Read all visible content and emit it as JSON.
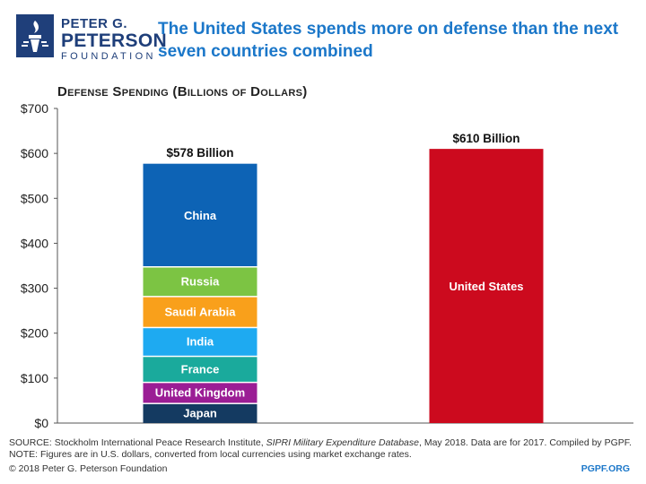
{
  "logo": {
    "line1": "PETER G.",
    "line2": "PETERSON",
    "line3": "FOUNDATION"
  },
  "headline": "The United States spends more on defense than the next seven countries combined",
  "chart_title": "Defense Spending (Billions of Dollars)",
  "colors": {
    "china": "#0d63b5",
    "russia": "#7cc443",
    "saudi_arabia": "#f9a01b",
    "india": "#1eaaf1",
    "france": "#1aaa9c",
    "united_kingdom": "#9b1d95",
    "japan": "#143a61",
    "united_states": "#cc0a1e",
    "axis_text": "#222222"
  },
  "chart_data": {
    "type": "bar",
    "stacked": true,
    "ylim": [
      0,
      700
    ],
    "yticks": [
      "$0",
      "$100",
      "$200",
      "$300",
      "$400",
      "$500",
      "$600",
      "$700"
    ],
    "ytick_values": [
      0,
      100,
      200,
      300,
      400,
      500,
      600,
      700
    ],
    "grid": false,
    "bars": [
      {
        "total_label": "$578 Billion",
        "total": 578,
        "segments": [
          {
            "name": "Japan",
            "value": 45,
            "color": "#143a61"
          },
          {
            "name": "United Kingdom",
            "value": 47,
            "color": "#9b1d95"
          },
          {
            "name": "France",
            "value": 58,
            "color": "#1aaa9c"
          },
          {
            "name": "India",
            "value": 64,
            "color": "#1eaaf1"
          },
          {
            "name": "Saudi Arabia",
            "value": 69,
            "color": "#f9a01b"
          },
          {
            "name": "Russia",
            "value": 66,
            "color": "#7cc443"
          },
          {
            "name": "China",
            "value": 228,
            "color": "#0d63b5"
          }
        ]
      },
      {
        "total_label": "$610 Billion",
        "total": 610,
        "segments": [
          {
            "name": "United States",
            "value": 610,
            "color": "#cc0a1e"
          }
        ]
      }
    ]
  },
  "notes": {
    "source_prefix": "SOURCE: Stockholm International Peace Research Institute, ",
    "source_italic": "SIPRI Military Expenditure Database",
    "source_suffix": ", May 2018. Data are for 2017. Compiled by PGPF.",
    "note": "NOTE: Figures are in U.S. dollars, converted from local currencies using market exchange rates."
  },
  "footer": {
    "copyright": "© 2018 Peter G. Peterson Foundation",
    "site": "PGPF.ORG"
  }
}
